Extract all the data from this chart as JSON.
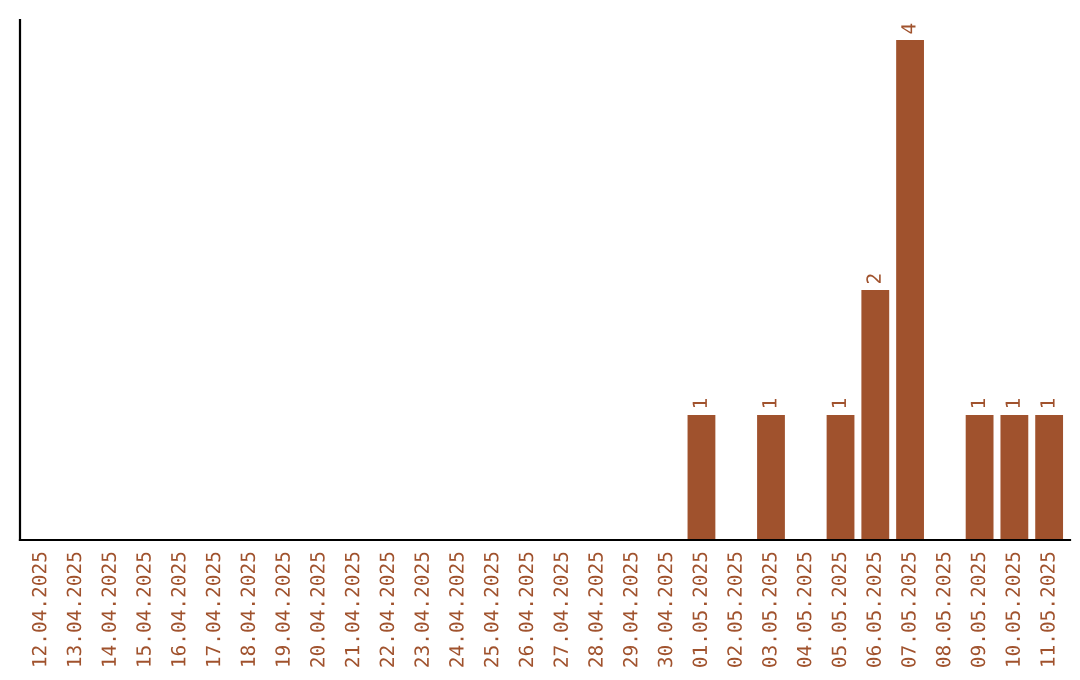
{
  "chart_data": {
    "type": "bar",
    "categories": [
      "12.04.2025",
      "13.04.2025",
      "14.04.2025",
      "15.04.2025",
      "16.04.2025",
      "17.04.2025",
      "18.04.2025",
      "19.04.2025",
      "20.04.2025",
      "21.04.2025",
      "22.04.2025",
      "23.04.2025",
      "24.04.2025",
      "25.04.2025",
      "26.04.2025",
      "27.04.2025",
      "28.04.2025",
      "29.04.2025",
      "30.04.2025",
      "01.05.2025",
      "02.05.2025",
      "03.05.2025",
      "04.05.2025",
      "05.05.2025",
      "06.05.2025",
      "07.05.2025",
      "08.05.2025",
      "09.05.2025",
      "10.05.2025",
      "11.05.2025"
    ],
    "values": [
      null,
      null,
      null,
      null,
      null,
      null,
      null,
      null,
      null,
      null,
      null,
      null,
      null,
      null,
      null,
      null,
      null,
      null,
      null,
      1,
      null,
      1,
      null,
      1,
      2,
      4,
      null,
      1,
      1,
      1
    ],
    "value_labels": [
      null,
      null,
      null,
      null,
      null,
      null,
      null,
      null,
      null,
      null,
      null,
      null,
      null,
      null,
      null,
      null,
      null,
      null,
      null,
      "1",
      null,
      "1",
      null,
      "1",
      "2",
      "4",
      null,
      "1",
      "1",
      "1"
    ],
    "color": "#a0522d",
    "grid": false,
    "legend": false
  }
}
